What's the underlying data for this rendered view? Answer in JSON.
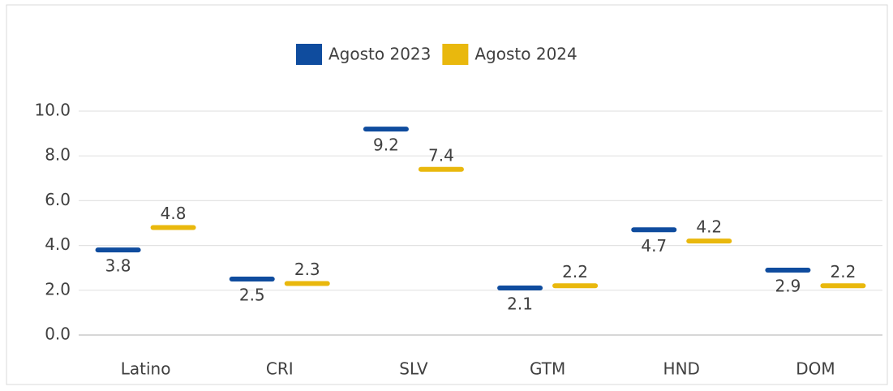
{
  "chart_data": {
    "type": "dash",
    "categories": [
      "Latino",
      "CRI",
      "SLV",
      "GTM",
      "HND",
      "DOM"
    ],
    "series": [
      {
        "name": "Agosto 2023",
        "color": "#0f4c9e",
        "values": [
          3.8,
          2.5,
          9.2,
          2.1,
          4.7,
          2.9
        ]
      },
      {
        "name": "Agosto 2024",
        "color": "#e9b80d",
        "values": [
          4.8,
          2.3,
          7.4,
          2.2,
          4.2,
          2.2
        ]
      }
    ],
    "ylim": [
      0,
      10
    ],
    "yticks": [
      {
        "value": 0,
        "label": "0.0"
      },
      {
        "value": 2,
        "label": "2.0"
      },
      {
        "value": 4,
        "label": "4.0"
      },
      {
        "value": 6,
        "label": "6.0"
      },
      {
        "value": 8,
        "label": "8.0"
      },
      {
        "value": 10,
        "label": "10.0"
      }
    ],
    "grid": true,
    "legend": "top"
  }
}
